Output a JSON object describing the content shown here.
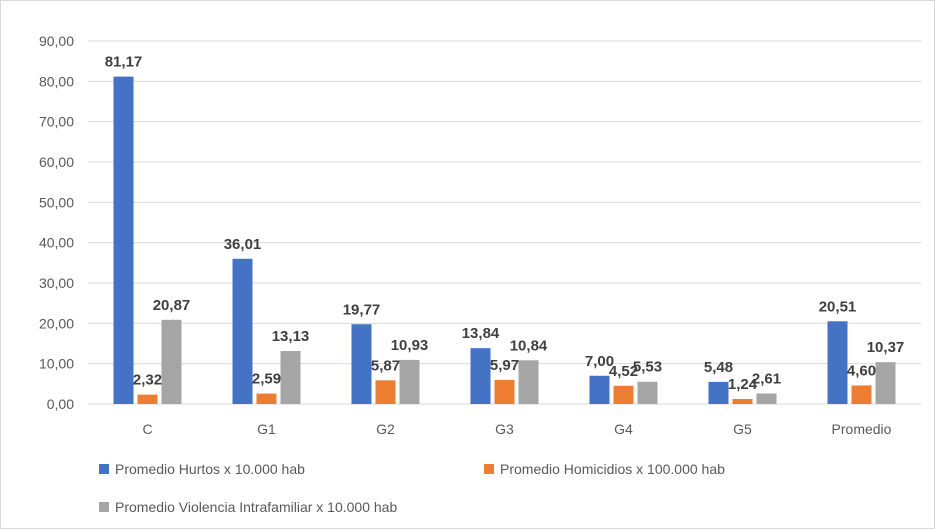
{
  "chart_data": {
    "type": "bar",
    "categories": [
      "C",
      "G1",
      "G2",
      "G3",
      "G4",
      "G5",
      "Promedio"
    ],
    "series": [
      {
        "name": "Promedio Hurtos x 10.000 hab",
        "color": "#4472c4",
        "values": [
          81.17,
          36.01,
          19.77,
          13.84,
          7.0,
          5.48,
          20.51
        ],
        "labels": [
          "81,17",
          "36,01",
          "19,77",
          "13,84",
          "7,00",
          "5,48",
          "20,51"
        ]
      },
      {
        "name": "Promedio Homicidios x 100.000 hab",
        "color": "#ed7d31",
        "values": [
          2.32,
          2.59,
          5.87,
          5.97,
          4.52,
          1.24,
          4.6
        ],
        "labels": [
          "2,32",
          "2,59",
          "5,87",
          "5,97",
          "4,52",
          "1,24",
          "4,60"
        ]
      },
      {
        "name": "Promedio Violencia Intrafamiliar x 10.000 hab",
        "color": "#a5a5a5",
        "values": [
          20.87,
          13.13,
          10.93,
          10.84,
          5.53,
          2.61,
          10.37
        ],
        "labels": [
          "20,87",
          "13,13",
          "10,93",
          "10,84",
          "5,53",
          "2,61",
          "10,37"
        ]
      }
    ],
    "ylim": [
      0,
      90
    ],
    "yticks": [
      0,
      10,
      20,
      30,
      40,
      50,
      60,
      70,
      80,
      90
    ],
    "ytick_labels": [
      "0,00",
      "10,00",
      "20,00",
      "30,00",
      "40,00",
      "50,00",
      "60,00",
      "70,00",
      "80,00",
      "90,00"
    ],
    "grid": true,
    "legend_position": "bottom"
  }
}
